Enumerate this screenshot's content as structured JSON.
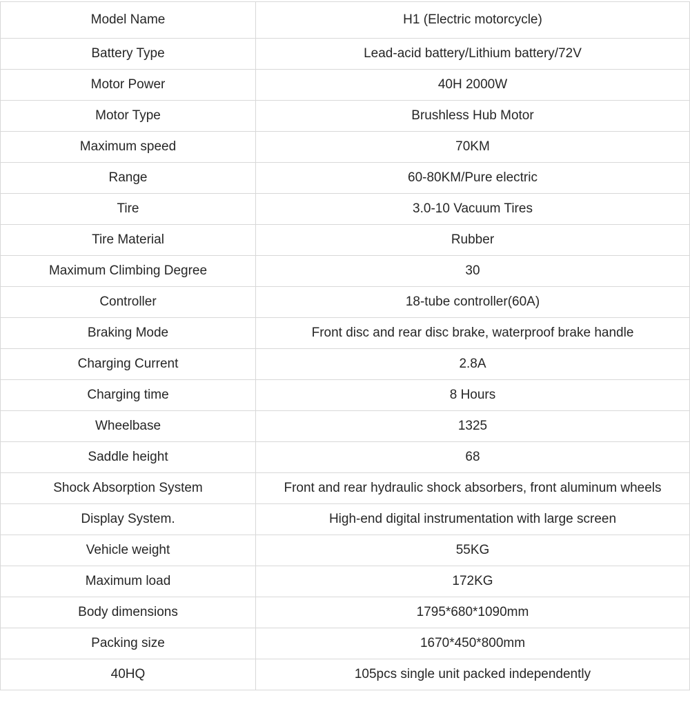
{
  "colors": {
    "border": "#d8d8d8",
    "text": "#262626",
    "background": "#ffffff"
  },
  "spec_table": {
    "rows": [
      {
        "label": "Model Name",
        "value": "H1 (Electric motorcycle)"
      },
      {
        "label": "Battery Type",
        "value": "Lead-acid battery/Lithium battery/72V"
      },
      {
        "label": "Motor Power",
        "value": "40H 2000W"
      },
      {
        "label": "Motor Type",
        "value": "Brushless Hub Motor"
      },
      {
        "label": "Maximum speed",
        "value": "70KM"
      },
      {
        "label": "Range",
        "value": "60-80KM/Pure electric"
      },
      {
        "label": "Tire",
        "value": "3.0-10 Vacuum Tires"
      },
      {
        "label": "Tire Material",
        "value": "Rubber"
      },
      {
        "label": "Maximum Climbing Degree",
        "value": "30"
      },
      {
        "label": "Controller",
        "value": "18-tube controller(60A)"
      },
      {
        "label": "Braking Mode",
        "value": "Front disc and rear disc brake, waterproof brake handle"
      },
      {
        "label": "Charging Current",
        "value": "2.8A"
      },
      {
        "label": "Charging time",
        "value": "8 Hours"
      },
      {
        "label": "Wheelbase",
        "value": "1325"
      },
      {
        "label": "Saddle height",
        "value": "68"
      },
      {
        "label": "Shock Absorption System",
        "value": "Front and rear hydraulic shock absorbers, front aluminum wheels"
      },
      {
        "label": "Display System.",
        "value": "High-end digital instrumentation with large screen"
      },
      {
        "label": "Vehicle weight",
        "value": "55KG"
      },
      {
        "label": "Maximum load",
        "value": "172KG"
      },
      {
        "label": "Body dimensions",
        "value": "1795*680*1090mm"
      },
      {
        "label": "Packing size",
        "value": "1670*450*800mm"
      },
      {
        "label": "40HQ",
        "value": "105pcs single unit packed independently"
      }
    ]
  }
}
